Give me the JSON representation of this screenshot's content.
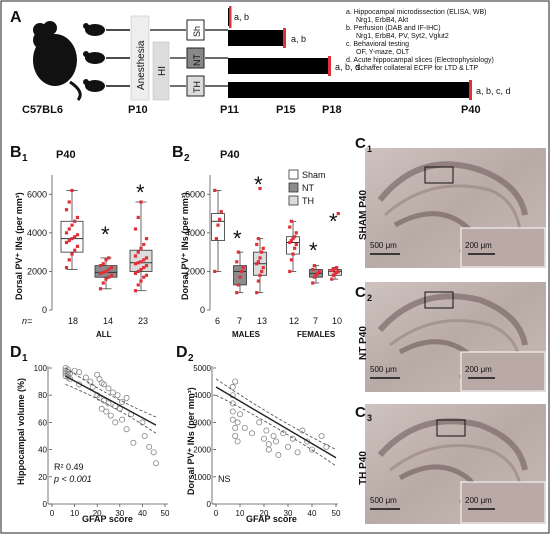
{
  "panelA": {
    "label": "A",
    "strain": "C57BL6",
    "anesthesia": "Anesthesia",
    "hi": "HI",
    "groups": [
      "Sh",
      "NT",
      "TH"
    ],
    "timepoints": [
      "P10",
      "P11",
      "P15",
      "P18",
      "P40"
    ],
    "bar_annotations": [
      "a, b",
      "a, b",
      "a, b, d",
      "a, b, c, d"
    ],
    "legend": [
      "a. Hippocampal microdissection (ELISA, WB)",
      "Nrg1, ErbB4, Akt",
      "b. Perfusion (DAB and IF-IHC)",
      "Nrg1, ErbB4, PV, Syt2, Vglut2",
      "c. Behavioral testing",
      "OF, Y-maze, OLT",
      "d. Acute hippocampal slices (Electrophysiology)",
      "Schaffer collateral ECFP for LTD & LTP"
    ]
  },
  "panelB1": {
    "label": "B",
    "sub": "1",
    "age": "P40",
    "ylabel": "Dorsal PV⁺ INs (per mm³)",
    "yticks": [
      "0",
      "2000",
      "4000",
      "6000"
    ],
    "n_label": "n=",
    "n": [
      "18",
      "14",
      "23"
    ],
    "group": "ALL",
    "stars": [
      "*",
      "*"
    ]
  },
  "panelB2": {
    "label": "B",
    "sub": "2",
    "age": "P40",
    "ylabel": "Dorsal PV⁺ INs (per mm³)",
    "yticks": [
      "0",
      "2000",
      "4000",
      "6000"
    ],
    "n": [
      "6",
      "7",
      "13",
      "12",
      "7",
      "10"
    ],
    "groups": [
      "MALES",
      "FEMALES"
    ],
    "legend": [
      "Sham",
      "NT",
      "TH"
    ],
    "stars": [
      "*",
      "*",
      "*",
      "*"
    ]
  },
  "panelC": {
    "labels": [
      "C",
      "C",
      "C"
    ],
    "subs": [
      "1",
      "2",
      "3"
    ],
    "titles": [
      "SHAM P40",
      "NT P40",
      "TH P40"
    ],
    "scale_main": "500 μm",
    "scale_inset": "200 μm"
  },
  "panelD1": {
    "label": "D",
    "sub": "1",
    "ylabel": "Hippocampal volume (%)",
    "xlabel": "GFAP score",
    "xticks": [
      "0",
      "10",
      "20",
      "30",
      "40",
      "50"
    ],
    "yticks": [
      "0",
      "20",
      "40",
      "60",
      "80",
      "100"
    ],
    "r2": "R² 0.49",
    "p": "p < 0.001"
  },
  "panelD2": {
    "label": "D",
    "sub": "2",
    "ylabel": "Dorsal PV⁺ INs (per mm³)",
    "xlabel": "GFAP score",
    "xticks": [
      "0",
      "10",
      "20",
      "30",
      "40",
      "50"
    ],
    "yticks": [
      "0",
      "1000",
      "2000",
      "3000",
      "4000",
      "5000"
    ],
    "ns": "NS"
  },
  "colors": {
    "accent_red": "#e0303a",
    "box_nt": "#8c8c8c",
    "box_th": "#dcdcdc"
  },
  "chart_data": [
    {
      "type": "box",
      "panel": "B1",
      "categories": [
        "Sham",
        "NT",
        "TH"
      ],
      "ylim": [
        0,
        7000
      ],
      "boxes": [
        {
          "q1": 3000,
          "median": 3700,
          "q3": 4600,
          "min": 2100,
          "max": 6200
        },
        {
          "q1": 1700,
          "median": 1950,
          "q3": 2300,
          "min": 1100,
          "max": 2700
        },
        {
          "q1": 2000,
          "median": 2450,
          "q3": 3100,
          "min": 1000,
          "max": 5600
        }
      ],
      "points": [
        [
          2200,
          2600,
          2900,
          3100,
          3300,
          3500,
          3600,
          3700,
          3800,
          3900,
          4000,
          4200,
          4400,
          4600,
          4800,
          5200,
          5600,
          6200
        ],
        [
          1100,
          1400,
          1600,
          1700,
          1800,
          1900,
          1950,
          2000,
          2100,
          2200,
          2300,
          2400,
          2600,
          2700
        ],
        [
          1000,
          1300,
          1500,
          1700,
          1800,
          1900,
          2000,
          2100,
          2200,
          2300,
          2400,
          2450,
          2500,
          2600,
          2700,
          2800,
          3000,
          3200,
          3400,
          3700,
          4200,
          4800,
          5600
        ]
      ]
    },
    {
      "type": "box",
      "panel": "B2",
      "categories": [
        "Males Sham",
        "Males NT",
        "Males TH",
        "Females Sham",
        "Females NT",
        "Females TH"
      ],
      "ylim": [
        0,
        7000
      ],
      "boxes": [
        {
          "q1": 3600,
          "median": 4600,
          "q3": 5000,
          "min": 2000,
          "max": 6200
        },
        {
          "q1": 1300,
          "median": 2000,
          "q3": 2300,
          "min": 900,
          "max": 3000
        },
        {
          "q1": 1800,
          "median": 2400,
          "q3": 3000,
          "min": 900,
          "max": 3700
        },
        {
          "q1": 2900,
          "median": 3500,
          "q3": 3800,
          "min": 2000,
          "max": 4600
        },
        {
          "q1": 1700,
          "median": 1900,
          "q3": 2100,
          "min": 1400,
          "max": 2300
        },
        {
          "q1": 1800,
          "median": 2000,
          "q3": 2100,
          "min": 1600,
          "max": 2200
        }
      ],
      "points": [
        [
          2000,
          3700,
          4400,
          4700,
          5100,
          6200
        ],
        [
          900,
          1300,
          1700,
          2000,
          2200,
          2500,
          3000
        ],
        [
          900,
          1500,
          1800,
          2000,
          2200,
          2400,
          2500,
          2700,
          3000,
          3200,
          3400,
          3700,
          6300
        ],
        [
          2000,
          2600,
          2900,
          3200,
          3400,
          3500,
          3600,
          3700,
          3800,
          4000,
          4300,
          4600
        ],
        [
          1400,
          1700,
          1800,
          1900,
          2000,
          2100,
          2300
        ],
        [
          1600,
          1800,
          1900,
          1950,
          2000,
          2050,
          2100,
          2150,
          2200,
          5000
        ]
      ]
    },
    {
      "type": "scatter",
      "panel": "D1",
      "xlim": [
        0,
        50
      ],
      "ylim": [
        0,
        100
      ],
      "fit": [
        [
          6,
          94
        ],
        [
          46,
          58
        ]
      ],
      "x": [
        6,
        6,
        6,
        6,
        7,
        7,
        7,
        7,
        8,
        8,
        10,
        12,
        12,
        15,
        17,
        18,
        20,
        20,
        21,
        21,
        22,
        22,
        23,
        23,
        24,
        25,
        25,
        26,
        27,
        28,
        28,
        29,
        30,
        31,
        31,
        33,
        33,
        35,
        36,
        40,
        41,
        43,
        45,
        46
      ],
      "y": [
        100,
        98,
        96,
        94,
        99,
        97,
        95,
        93,
        96,
        92,
        98,
        97,
        88,
        93,
        90,
        86,
        95,
        80,
        92,
        78,
        89,
        70,
        88,
        76,
        68,
        85,
        74,
        65,
        82,
        72,
        60,
        80,
        70,
        75,
        62,
        78,
        55,
        66,
        45,
        60,
        50,
        42,
        38,
        30
      ]
    },
    {
      "type": "scatter",
      "panel": "D2",
      "xlim": [
        0,
        50
      ],
      "ylim": [
        0,
        5000
      ],
      "fit": [
        [
          0,
          4300
        ],
        [
          50,
          1700
        ]
      ],
      "x": [
        7,
        7,
        7,
        7,
        7,
        8,
        8,
        8,
        9,
        9,
        10,
        12,
        15,
        18,
        20,
        21,
        22,
        22,
        24,
        25,
        26,
        28,
        30,
        32,
        34,
        36,
        38,
        40,
        44,
        46
      ],
      "y": [
        4300,
        4000,
        3700,
        3400,
        3100,
        2800,
        4500,
        2500,
        3000,
        2300,
        3300,
        2800,
        2600,
        3000,
        2400,
        2700,
        2200,
        2000,
        2500,
        2300,
        1800,
        2600,
        2100,
        2400,
        1900,
        2700,
        2300,
        2000,
        2500,
        2100
      ]
    }
  ]
}
